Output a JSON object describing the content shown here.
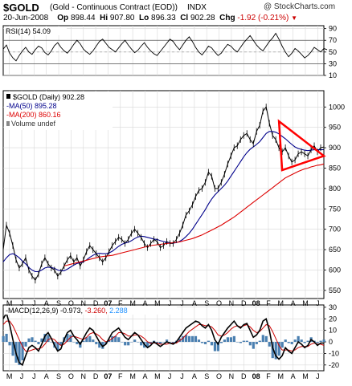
{
  "header": {
    "symbol": "$GOLD",
    "name": "(Gold - Continuous Contract (EOD))",
    "exchange": "INDX",
    "credit": "@ StockCharts.com",
    "date": "20-Jun-2008",
    "open_label": "Op",
    "open": "898.44",
    "high_label": "Hi",
    "high": "907.80",
    "low_label": "Lo",
    "low": "896.33",
    "close_label": "Cl",
    "close": "902.28",
    "change_label": "Chg",
    "change": "-1.92 (-0.21%)",
    "change_color": "#cc0000"
  },
  "chart_data": [
    {
      "type": "line",
      "panel": "rsi",
      "legend": "RSI(14) 54.09",
      "yticks": [
        10,
        30,
        50,
        70,
        90
      ],
      "ylim": [
        10,
        95
      ],
      "overbought": 70,
      "oversold": 30,
      "color": "#000000",
      "values": [
        55,
        62,
        48,
        40,
        35,
        44,
        52,
        58,
        50,
        46,
        54,
        60,
        57,
        49,
        45,
        52,
        61,
        66,
        58,
        52,
        48,
        55,
        63,
        70,
        64,
        55,
        50,
        46,
        52,
        60,
        68,
        72,
        65,
        58,
        54,
        50,
        57,
        64,
        70,
        62,
        55,
        49,
        53,
        60,
        66,
        58,
        52,
        47,
        44,
        51,
        58,
        65,
        72,
        68,
        60,
        54,
        62,
        70,
        76,
        68,
        58,
        50,
        45,
        52,
        60,
        57,
        50,
        44,
        48,
        56,
        63,
        60,
        54,
        50,
        58,
        66,
        72,
        78,
        70,
        62,
        56,
        52,
        60,
        68,
        74,
        82,
        72,
        60,
        50,
        42,
        48,
        56,
        52,
        46,
        40,
        44,
        50,
        58,
        54,
        50,
        56,
        54
      ]
    },
    {
      "type": "line",
      "panel": "price",
      "title": "$GOLD (Daily) 902.28",
      "yticks": [
        550,
        600,
        650,
        700,
        750,
        800,
        850,
        900,
        950,
        1000
      ],
      "ylim": [
        530,
        1040
      ],
      "series": [
        {
          "name": "$GOLD (Daily) 902.28",
          "color": "#000000",
          "values": [
            650,
            710,
            690,
            660,
            625,
            605,
            615,
            630,
            600,
            585,
            575,
            590,
            615,
            630,
            615,
            605,
            600,
            585,
            595,
            610,
            625,
            635,
            620,
            630,
            610,
            625,
            645,
            660,
            650,
            640,
            630,
            620,
            630,
            645,
            660,
            670,
            680,
            675,
            665,
            675,
            690,
            700,
            690,
            680,
            665,
            655,
            665,
            675,
            670,
            655,
            660,
            670,
            665,
            665,
            675,
            690,
            710,
            735,
            745,
            760,
            780,
            795,
            800,
            815,
            840,
            830,
            800,
            800,
            815,
            835,
            860,
            880,
            900,
            905,
            920,
            930,
            935,
            920,
            910,
            940,
            955,
            990,
            1000,
            960,
            930,
            920,
            900,
            890,
            900,
            880,
            865,
            870,
            885,
            890,
            885,
            880,
            895,
            905,
            890,
            900,
            902
          ]
        },
        {
          "name": "MA(50) 895.28",
          "color": "#00008b",
          "values": [
            620,
            630,
            638,
            640,
            636,
            630,
            622,
            615,
            606,
            600,
            596,
            596,
            600,
            605,
            607,
            606,
            604,
            600,
            598,
            598,
            602,
            607,
            612,
            616,
            618,
            620,
            625,
            631,
            636,
            640,
            641,
            640,
            640,
            642,
            646,
            652,
            658,
            663,
            666,
            668,
            672,
            677,
            681,
            683,
            682,
            680,
            678,
            676,
            675,
            672,
            670,
            668,
            667,
            666,
            667,
            670,
            675,
            682,
            690,
            700,
            712,
            724,
            736,
            748,
            762,
            774,
            784,
            792,
            800,
            808,
            818,
            830,
            842,
            854,
            866,
            878,
            888,
            896,
            902,
            908,
            915,
            925,
            935,
            940,
            940,
            938,
            934,
            928,
            922,
            915,
            908,
            902,
            898,
            896,
            894,
            893,
            894,
            895,
            895,
            895,
            895.28
          ]
        },
        {
          "name": "MA(200) 860.16",
          "color": "#dd0000",
          "values": [
            null,
            null,
            null,
            null,
            null,
            null,
            null,
            null,
            null,
            null,
            null,
            null,
            null,
            null,
            null,
            null,
            null,
            null,
            null,
            610,
            612,
            614,
            616,
            618,
            620,
            622,
            624,
            626,
            628,
            630,
            632,
            633,
            634,
            635,
            636,
            638,
            640,
            642,
            644,
            646,
            648,
            650,
            652,
            654,
            656,
            658,
            660,
            661,
            662,
            663,
            664,
            665,
            666,
            667,
            668,
            669,
            671,
            673,
            675,
            677,
            680,
            683,
            686,
            690,
            694,
            698,
            702,
            706,
            710,
            715,
            720,
            725,
            730,
            736,
            742,
            748,
            754,
            760,
            766,
            772,
            778,
            784,
            790,
            796,
            802,
            808,
            814,
            820,
            826,
            830,
            834,
            838,
            842,
            845,
            848,
            850,
            853,
            855,
            857,
            858,
            860.16
          ]
        },
        {
          "name": "Volume undef",
          "color": "#888888",
          "values": []
        }
      ],
      "annotation": {
        "type": "triangle",
        "color": "#ff0000",
        "points": [
          {
            "x": 86,
            "y": 965
          },
          {
            "x": 100,
            "y": 880
          },
          {
            "x": 87,
            "y": 845
          }
        ]
      }
    },
    {
      "type": "line",
      "panel": "macd",
      "legend": [
        "MACD(12,26,9)",
        "-0.973",
        "-3.260",
        "2.288"
      ],
      "legend_colors": [
        "#000000",
        "#000000",
        "#cc0000",
        "#1e90ff"
      ],
      "yticks": [
        -20,
        -10,
        0,
        10,
        20,
        30
      ],
      "ylim": [
        -25,
        32
      ],
      "series": [
        {
          "name": "MACD(12,26,9)",
          "color": "#000000",
          "values": [
            20,
            25,
            15,
            2,
            -10,
            -18,
            -20,
            -12,
            -5,
            -3,
            -5,
            -8,
            -2,
            5,
            8,
            3,
            -3,
            -8,
            -6,
            2,
            8,
            10,
            5,
            2,
            -2,
            3,
            8,
            12,
            10,
            5,
            0,
            -4,
            -2,
            3,
            8,
            10,
            12,
            8,
            4,
            2,
            5,
            8,
            6,
            2,
            -2,
            -5,
            -3,
            0,
            -2,
            -4,
            -2,
            0,
            -1,
            -2,
            0,
            4,
            8,
            12,
            14,
            16,
            18,
            17,
            14,
            12,
            15,
            10,
            2,
            -2,
            4,
            8,
            12,
            15,
            18,
            14,
            12,
            15,
            16,
            10,
            4,
            6,
            10,
            18,
            20,
            10,
            -5,
            -12,
            -15,
            -12,
            -5,
            -8,
            -10,
            -5,
            0,
            -2,
            -5,
            -3,
            2,
            0,
            -3,
            -1,
            -1
          ]
        },
        {
          "name": "Signal",
          "color": "#cc0000",
          "values": [
            15,
            18,
            18,
            14,
            8,
            2,
            -4,
            -8,
            -8,
            -7,
            -6,
            -6,
            -5,
            -2,
            2,
            3,
            2,
            -1,
            -3,
            -2,
            1,
            4,
            5,
            4,
            3,
            2,
            4,
            7,
            8,
            7,
            5,
            2,
            0,
            1,
            3,
            5,
            8,
            8,
            7,
            5,
            5,
            6,
            6,
            5,
            3,
            0,
            -1,
            -1,
            -1,
            -2,
            -2,
            -2,
            -1,
            -1,
            -1,
            1,
            3,
            6,
            9,
            11,
            13,
            15,
            15,
            14,
            14,
            13,
            10,
            6,
            5,
            6,
            8,
            11,
            13,
            14,
            13,
            14,
            15,
            13,
            10,
            8,
            9,
            12,
            15,
            14,
            9,
            3,
            -3,
            -7,
            -7,
            -7,
            -8,
            -7,
            -5,
            -4,
            -4,
            -4,
            -2,
            -1,
            -2,
            -2,
            -3
          ]
        }
      ]
    }
  ],
  "x_axis": {
    "labels": [
      "M",
      "J",
      "J",
      "A",
      "S",
      "O",
      "N",
      "D",
      "07",
      "F",
      "M",
      "A",
      "M",
      "J",
      "J",
      "A",
      "S",
      "O",
      "N",
      "D",
      "08",
      "F",
      "M",
      "A",
      "M",
      "J"
    ],
    "bold": [
      "07",
      "08"
    ]
  }
}
